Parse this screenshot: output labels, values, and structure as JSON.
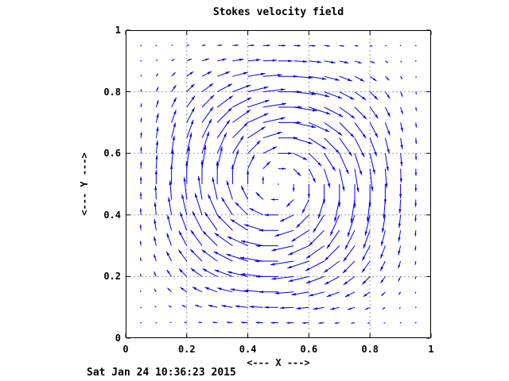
{
  "title": "Stokes velocity field",
  "timestamp": "Sat Jan 24 10:36:23 2015",
  "chart_data": {
    "type": "quiver",
    "title": "Stokes velocity field",
    "xlabel": "<--- X --->",
    "ylabel": "<--- Y --->",
    "xlim": [
      0,
      1
    ],
    "ylim": [
      0,
      1
    ],
    "xticks": [
      0,
      0.2,
      0.4,
      0.6,
      0.8,
      1
    ],
    "yticks": [
      0,
      0.2,
      0.4,
      0.6,
      0.8,
      1
    ],
    "xtick_labels": [
      "0",
      "0.2",
      "0.4",
      "0.6",
      "0.8",
      "1"
    ],
    "ytick_labels": [
      "0",
      "0.2",
      "0.4",
      "0.6",
      "0.8",
      "1"
    ],
    "grid": true,
    "legend": "none",
    "field": {
      "description": "Single clockwise vortex centered at (0.5,0.5); velocity vanishes at center and on all boundaries; maximum speed on ring at radius ~0.25 (longest arrows near (0.5,0.75),(0.5,0.25),(0.25,0.5),(0.75,0.5))",
      "u_formula": "-sin(pi*x)^2 * sin(2*pi*y)",
      "v_formula": "sin(2*pi*x) * sin(pi*y)^2",
      "rotation": "clockwise",
      "x_start": 0.05,
      "x_step": 0.05,
      "x_count": 19,
      "y_start": 0.05,
      "y_step": 0.05,
      "y_count": 19,
      "arrow_scale": 0.078
    },
    "colors": {
      "arrow": "#0000ee",
      "grid": "#9c9c9c",
      "border": "#000000",
      "text": "#000000",
      "background": "#ffffff"
    }
  }
}
